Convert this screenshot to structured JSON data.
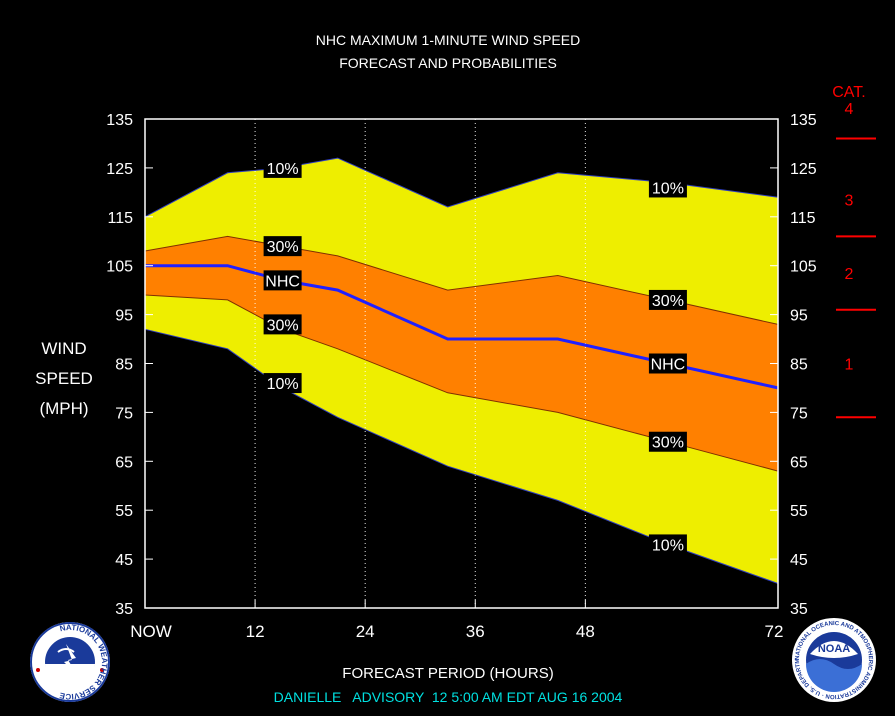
{
  "chart_data": {
    "type": "area",
    "title": "NHC MAXIMUM 1-MINUTE WIND SPEED",
    "subtitle": "FORECAST AND PROBABILITIES",
    "xlabel": "FORECAST PERIOD (HOURS)",
    "ylabel_lines": [
      "WIND",
      "SPEED",
      "(MPH)"
    ],
    "x_ticks": [
      {
        "value": 0,
        "label": "NOW"
      },
      {
        "value": 12,
        "label": "12"
      },
      {
        "value": 24,
        "label": "24"
      },
      {
        "value": 36,
        "label": "36"
      },
      {
        "value": 48,
        "label": "48"
      },
      {
        "value": 72,
        "label": "72"
      }
    ],
    "xlim": [
      0,
      69
    ],
    "ylim": [
      35,
      135
    ],
    "y_ticks": [
      35,
      45,
      55,
      65,
      75,
      85,
      95,
      105,
      115,
      125,
      135
    ],
    "x": [
      0,
      9,
      15,
      21,
      33,
      45,
      57,
      69
    ],
    "series": [
      {
        "name": "10%",
        "role": "upper-10",
        "values": [
          115,
          124,
          125,
          127,
          117,
          124,
          122,
          119
        ]
      },
      {
        "name": "30%",
        "role": "upper-30",
        "values": [
          108,
          111,
          109,
          107,
          100,
          103,
          98,
          93
        ]
      },
      {
        "name": "NHC",
        "role": "forecast",
        "values": [
          105,
          105,
          102,
          100,
          90,
          90,
          85,
          80
        ]
      },
      {
        "name": "30%",
        "role": "lower-30",
        "values": [
          99,
          98,
          92,
          88,
          79,
          75,
          69,
          63
        ]
      },
      {
        "name": "10%",
        "role": "lower-10",
        "values": [
          92,
          88,
          80,
          74,
          64,
          57,
          48,
          40
        ]
      }
    ],
    "band_labels": [
      {
        "text": "10%",
        "x": 15,
        "y": 125
      },
      {
        "text": "30%",
        "x": 15,
        "y": 109
      },
      {
        "text": "NHC",
        "x": 15,
        "y": 102
      },
      {
        "text": "30%",
        "x": 15,
        "y": 93
      },
      {
        "text": "10%",
        "x": 15,
        "y": 81
      },
      {
        "text": "10%",
        "x": 57,
        "y": 121
      },
      {
        "text": "30%",
        "x": 57,
        "y": 98
      },
      {
        "text": "NHC",
        "x": 57,
        "y": 85
      },
      {
        "text": "30%",
        "x": 57,
        "y": 69
      },
      {
        "text": "10%",
        "x": 57,
        "y": 48
      }
    ],
    "category_label": "CAT.",
    "categories": [
      {
        "label": "1",
        "mid": 85
      },
      {
        "label": "2",
        "mid": 103.5
      },
      {
        "label": "3",
        "mid": 118.5
      },
      {
        "label": "4",
        "mid": 138
      }
    ],
    "category_thresholds": [
      74,
      96,
      111,
      131
    ],
    "grid": "vertical-dotted",
    "colors": {
      "outer_band": "#eeee00",
      "inner_band": "#ff8000",
      "forecast_line": "#2020ff",
      "category": "#ff0000",
      "footer": "#00e0e0"
    }
  },
  "footer": "DANIELLE   ADVISORY  12 5:00 AM EDT AUG 16 2004",
  "logos": {
    "left": {
      "icon": "nws-logo-icon",
      "text": "NATIONAL WEATHER SERVICE"
    },
    "right": {
      "icon": "noaa-logo-icon",
      "center": "NOAA",
      "text": "NATIONAL OCEANIC AND ATMOSPHERIC ADMINISTRATION · U.S. DEPARTMENT OF COMMERCE"
    }
  }
}
